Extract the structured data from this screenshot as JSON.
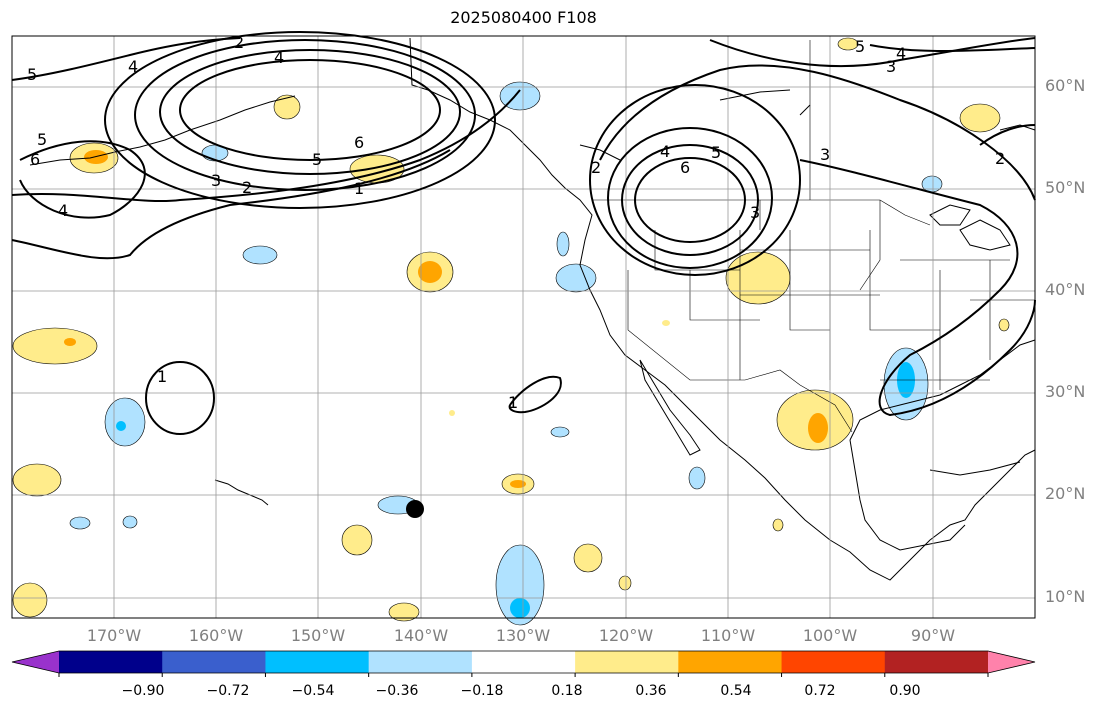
{
  "title": "2025080400 F108",
  "lat_labels": [
    "60°N",
    "50°N",
    "40°N",
    "30°N",
    "20°N",
    "10°N"
  ],
  "lon_labels": [
    "170°W",
    "160°W",
    "150°W",
    "140°W",
    "130°W",
    "120°W",
    "110°W",
    "100°W",
    "90°W"
  ],
  "colorbar": {
    "colors": [
      "#9932cc",
      "#00008b",
      "#3a5fcd",
      "#00bfff",
      "#b0e2ff",
      "#ffffff",
      "#ffec8b",
      "#ffa500",
      "#ff4500",
      "#b22222",
      "#ff82ab"
    ],
    "labels": [
      "−0.90",
      "−0.72",
      "−0.54",
      "−0.36",
      "−0.18",
      "0.18",
      "0.36",
      "0.54",
      "0.72",
      "0.90"
    ]
  },
  "contour_labels": [
    "5",
    "4",
    "2",
    "4",
    "5",
    "6",
    "3",
    "2",
    "1",
    "5",
    "6",
    "4",
    "3",
    "4",
    "5",
    "6",
    "2",
    "4",
    "3",
    "2",
    "3",
    "5",
    "1",
    "1"
  ],
  "storm_marker": "tropical cyclone position"
}
